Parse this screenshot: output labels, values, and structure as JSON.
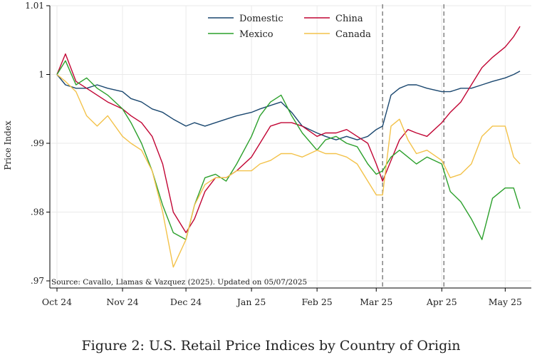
{
  "caption": "Figure 2: U.S. Retail Price Indices by Country of Origin",
  "chart_data": {
    "type": "line",
    "ylabel": "Price Index",
    "xlabel": "",
    "ylim": [
      0.97,
      1.01
    ],
    "yticks": [
      0.97,
      0.98,
      0.99,
      1.0,
      1.01
    ],
    "ytick_labels": [
      ".97",
      ".98",
      ".99",
      "1",
      "1.01"
    ],
    "xlim": [
      "2024-10-01",
      "2025-05-12"
    ],
    "xticks": [
      "2024-10-01",
      "2024-11-01",
      "2024-12-01",
      "2025-01-01",
      "2025-02-01",
      "2025-03-01",
      "2025-04-01",
      "2025-05-01"
    ],
    "xtick_labels": [
      "Oct 24",
      "Nov 24",
      "Dec 24",
      "Jan 25",
      "Feb 25",
      "Mar 25",
      "Apr 25",
      "May 25"
    ],
    "vlines": [
      "2025-03-04",
      "2025-04-02"
    ],
    "grid": true,
    "legend": "top-center",
    "annotation": "Source: Cavallo, Llamas & Vazquez (2025). Updated on 05/07/2025",
    "series": [
      {
        "name": "Domestic",
        "color": "#1a476f",
        "x": [
          "2024-10-01",
          "2024-10-05",
          "2024-10-10",
          "2024-10-15",
          "2024-10-20",
          "2024-10-25",
          "2024-11-01",
          "2024-11-05",
          "2024-11-10",
          "2024-11-15",
          "2024-11-20",
          "2024-11-25",
          "2024-12-01",
          "2024-12-05",
          "2024-12-10",
          "2024-12-15",
          "2024-12-20",
          "2024-12-25",
          "2025-01-01",
          "2025-01-05",
          "2025-01-10",
          "2025-01-15",
          "2025-01-20",
          "2025-01-25",
          "2025-02-01",
          "2025-02-05",
          "2025-02-10",
          "2025-02-15",
          "2025-02-20",
          "2025-02-25",
          "2025-03-01",
          "2025-03-04",
          "2025-03-08",
          "2025-03-12",
          "2025-03-16",
          "2025-03-20",
          "2025-03-25",
          "2025-04-01",
          "2025-04-05",
          "2025-04-10",
          "2025-04-15",
          "2025-04-20",
          "2025-04-25",
          "2025-05-01",
          "2025-05-05",
          "2025-05-08"
        ],
        "values": [
          1.0,
          0.9985,
          0.998,
          0.998,
          0.9985,
          0.998,
          0.9975,
          0.9965,
          0.996,
          0.995,
          0.9945,
          0.9935,
          0.9925,
          0.993,
          0.9925,
          0.993,
          0.9935,
          0.994,
          0.9945,
          0.995,
          0.9955,
          0.996,
          0.9945,
          0.9925,
          0.9915,
          0.991,
          0.9905,
          0.991,
          0.9905,
          0.991,
          0.992,
          0.9925,
          0.997,
          0.998,
          0.9985,
          0.9985,
          0.998,
          0.9975,
          0.9975,
          0.998,
          0.998,
          0.9985,
          0.999,
          0.9995,
          1.0,
          1.0005
        ]
      },
      {
        "name": "China",
        "color": "#c10534",
        "x": [
          "2024-10-01",
          "2024-10-05",
          "2024-10-10",
          "2024-10-15",
          "2024-10-20",
          "2024-10-25",
          "2024-11-01",
          "2024-11-05",
          "2024-11-10",
          "2024-11-15",
          "2024-11-20",
          "2024-11-25",
          "2024-12-01",
          "2024-12-05",
          "2024-12-10",
          "2024-12-15",
          "2024-12-20",
          "2024-12-25",
          "2025-01-01",
          "2025-01-05",
          "2025-01-10",
          "2025-01-15",
          "2025-01-20",
          "2025-01-25",
          "2025-02-01",
          "2025-02-05",
          "2025-02-10",
          "2025-02-15",
          "2025-02-20",
          "2025-02-25",
          "2025-03-01",
          "2025-03-04",
          "2025-03-08",
          "2025-03-12",
          "2025-03-16",
          "2025-03-20",
          "2025-03-25",
          "2025-04-01",
          "2025-04-05",
          "2025-04-10",
          "2025-04-15",
          "2025-04-20",
          "2025-04-25",
          "2025-05-01",
          "2025-05-05",
          "2025-05-08"
        ],
        "values": [
          1.0,
          1.003,
          0.999,
          0.998,
          0.997,
          0.996,
          0.995,
          0.994,
          0.993,
          0.991,
          0.987,
          0.98,
          0.977,
          0.979,
          0.983,
          0.985,
          0.985,
          0.986,
          0.988,
          0.99,
          0.9925,
          0.993,
          0.993,
          0.9925,
          0.991,
          0.9915,
          0.9915,
          0.992,
          0.991,
          0.99,
          0.987,
          0.9845,
          0.9875,
          0.9905,
          0.992,
          0.9915,
          0.991,
          0.993,
          0.9945,
          0.996,
          0.9985,
          1.001,
          1.0025,
          1.004,
          1.0055,
          1.007
        ]
      },
      {
        "name": "Mexico",
        "color": "#2ca02c",
        "x": [
          "2024-10-01",
          "2024-10-05",
          "2024-10-10",
          "2024-10-15",
          "2024-10-20",
          "2024-10-25",
          "2024-11-01",
          "2024-11-05",
          "2024-11-10",
          "2024-11-15",
          "2024-11-20",
          "2024-11-25",
          "2024-12-01",
          "2024-12-05",
          "2024-12-10",
          "2024-12-15",
          "2024-12-20",
          "2024-12-25",
          "2025-01-01",
          "2025-01-05",
          "2025-01-10",
          "2025-01-15",
          "2025-01-20",
          "2025-01-25",
          "2025-02-01",
          "2025-02-05",
          "2025-02-10",
          "2025-02-15",
          "2025-02-20",
          "2025-02-25",
          "2025-03-01",
          "2025-03-04",
          "2025-03-08",
          "2025-03-12",
          "2025-03-16",
          "2025-03-20",
          "2025-03-25",
          "2025-04-01",
          "2025-04-05",
          "2025-04-10",
          "2025-04-15",
          "2025-04-20",
          "2025-04-25",
          "2025-05-01",
          "2025-05-05",
          "2025-05-08"
        ],
        "values": [
          1.0,
          1.002,
          0.9985,
          0.9995,
          0.998,
          0.997,
          0.995,
          0.993,
          0.99,
          0.986,
          0.981,
          0.977,
          0.976,
          0.981,
          0.985,
          0.9855,
          0.9845,
          0.987,
          0.991,
          0.994,
          0.996,
          0.997,
          0.994,
          0.9915,
          0.989,
          0.9905,
          0.991,
          0.99,
          0.9895,
          0.987,
          0.9855,
          0.986,
          0.988,
          0.989,
          0.988,
          0.987,
          0.988,
          0.987,
          0.983,
          0.9815,
          0.979,
          0.976,
          0.982,
          0.9835,
          0.9835,
          0.9805
        ]
      },
      {
        "name": "Canada",
        "color": "#f3c24a",
        "x": [
          "2024-10-01",
          "2024-10-05",
          "2024-10-10",
          "2024-10-15",
          "2024-10-20",
          "2024-10-25",
          "2024-11-01",
          "2024-11-05",
          "2024-11-10",
          "2024-11-15",
          "2024-11-20",
          "2024-11-25",
          "2024-12-01",
          "2024-12-05",
          "2024-12-10",
          "2024-12-15",
          "2024-12-20",
          "2024-12-25",
          "2025-01-01",
          "2025-01-05",
          "2025-01-10",
          "2025-01-15",
          "2025-01-20",
          "2025-01-25",
          "2025-02-01",
          "2025-02-05",
          "2025-02-10",
          "2025-02-15",
          "2025-02-20",
          "2025-02-25",
          "2025-03-01",
          "2025-03-04",
          "2025-03-08",
          "2025-03-12",
          "2025-03-16",
          "2025-03-20",
          "2025-03-25",
          "2025-04-01",
          "2025-04-05",
          "2025-04-10",
          "2025-04-15",
          "2025-04-20",
          "2025-04-25",
          "2025-05-01",
          "2025-05-05",
          "2025-05-08"
        ],
        "values": [
          1.0,
          0.999,
          0.9975,
          0.994,
          0.9925,
          0.994,
          0.991,
          0.99,
          0.989,
          0.986,
          0.98,
          0.972,
          0.976,
          0.981,
          0.984,
          0.985,
          0.985,
          0.986,
          0.986,
          0.987,
          0.9875,
          0.9885,
          0.9885,
          0.988,
          0.989,
          0.9885,
          0.9885,
          0.988,
          0.987,
          0.9845,
          0.9825,
          0.9825,
          0.9925,
          0.9935,
          0.9905,
          0.9885,
          0.989,
          0.9875,
          0.985,
          0.9855,
          0.987,
          0.991,
          0.9925,
          0.9925,
          0.988,
          0.987
        ]
      }
    ]
  }
}
